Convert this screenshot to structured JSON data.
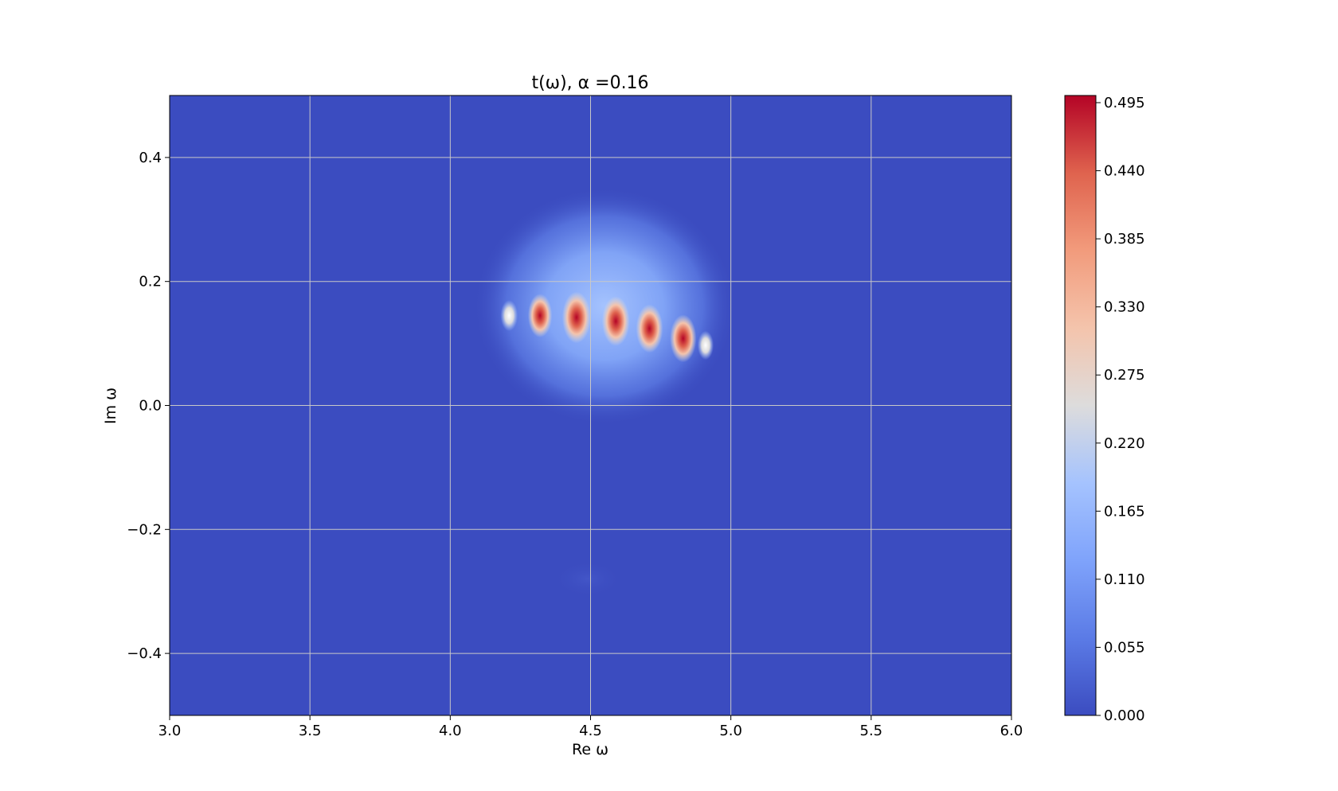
{
  "chart_data": {
    "type": "heatmap",
    "title": "t(ω), α =0.16",
    "xlabel": "Re ω",
    "ylabel": "Im ω",
    "xlim": [
      3.0,
      6.0
    ],
    "ylim": [
      -0.5,
      0.5
    ],
    "xticks": [
      3.0,
      3.5,
      4.0,
      4.5,
      5.0,
      5.5,
      6.0
    ],
    "xtick_labels": [
      "3.0",
      "3.5",
      "4.0",
      "4.5",
      "5.0",
      "5.5",
      "6.0"
    ],
    "yticks": [
      -0.4,
      -0.2,
      0.0,
      0.2,
      0.4
    ],
    "ytick_labels": [
      "−0.4",
      "−0.2",
      "0.0",
      "0.2",
      "0.4"
    ],
    "grid": true,
    "colormap": "coolwarm",
    "colorbar": {
      "range": [
        0.0,
        0.495
      ],
      "ticks": [
        0.0,
        0.055,
        0.11,
        0.165,
        0.22,
        0.275,
        0.33,
        0.385,
        0.44,
        0.495
      ],
      "tick_labels": [
        "0.000",
        "0.055",
        "0.110",
        "0.165",
        "0.220",
        "0.275",
        "0.330",
        "0.385",
        "0.440",
        "0.495"
      ]
    },
    "peaks": [
      {
        "re": 4.21,
        "im": 0.145,
        "value": 0.2
      },
      {
        "re": 4.32,
        "im": 0.145,
        "value": 0.38
      },
      {
        "re": 4.45,
        "im": 0.142,
        "value": 0.495
      },
      {
        "re": 4.59,
        "im": 0.136,
        "value": 0.47
      },
      {
        "re": 4.71,
        "im": 0.124,
        "value": 0.45
      },
      {
        "re": 4.83,
        "im": 0.108,
        "value": 0.44
      },
      {
        "re": 4.91,
        "im": 0.097,
        "value": 0.17
      }
    ],
    "halo": {
      "re": 4.55,
      "im": 0.16,
      "value": 0.12
    },
    "faint_blob": {
      "re": 4.49,
      "im": -0.28,
      "value": 0.01
    }
  },
  "colors": {
    "background_low": "#3b4cc0",
    "high": "#b40426",
    "grid": "#c8c8c8"
  }
}
